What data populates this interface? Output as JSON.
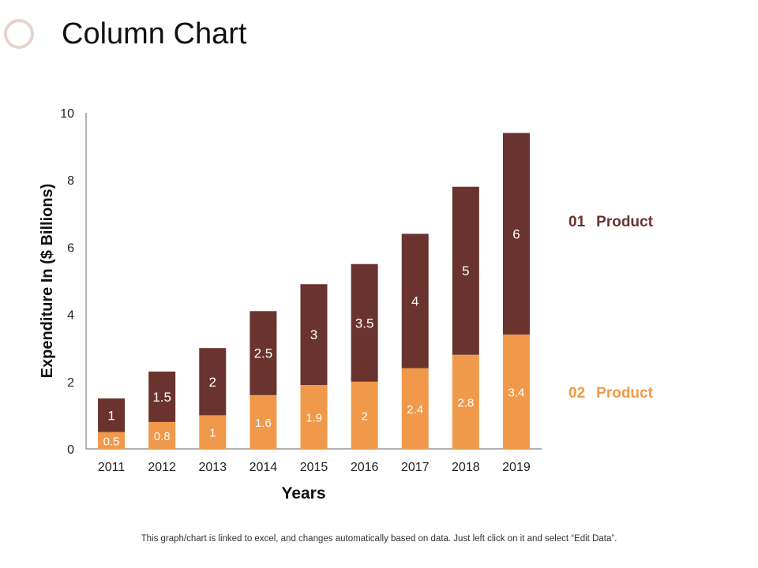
{
  "page": {
    "title": "Column Chart",
    "footer_note": "This graph/chart is linked to excel, and changes automatically based on data. Just left click on it and select “Edit Data”."
  },
  "legend": [
    {
      "number": "01",
      "label": "Product",
      "color": "#6b332e"
    },
    {
      "number": "02",
      "label": "Product",
      "color": "#f0994a"
    }
  ],
  "chart_data": {
    "type": "bar",
    "stacked": true,
    "categories": [
      "2011",
      "2012",
      "2013",
      "2014",
      "2015",
      "2016",
      "2017",
      "2018",
      "2019"
    ],
    "series": [
      {
        "name": "02 Product",
        "color": "#f0994a",
        "values": [
          0.5,
          0.8,
          1,
          1.6,
          1.9,
          2,
          2.4,
          2.8,
          3.4
        ]
      },
      {
        "name": "01 Product",
        "color": "#6b332e",
        "values": [
          1,
          1.5,
          2,
          2.5,
          3,
          3.5,
          4,
          5,
          6
        ]
      }
    ],
    "title": "",
    "xlabel": "Years",
    "ylabel": "Expenditure In ($ Billions)",
    "ylim": [
      0,
      10
    ],
    "yticks": [
      0,
      2,
      4,
      6,
      8,
      10
    ],
    "grid": false,
    "legend_position": "right"
  }
}
